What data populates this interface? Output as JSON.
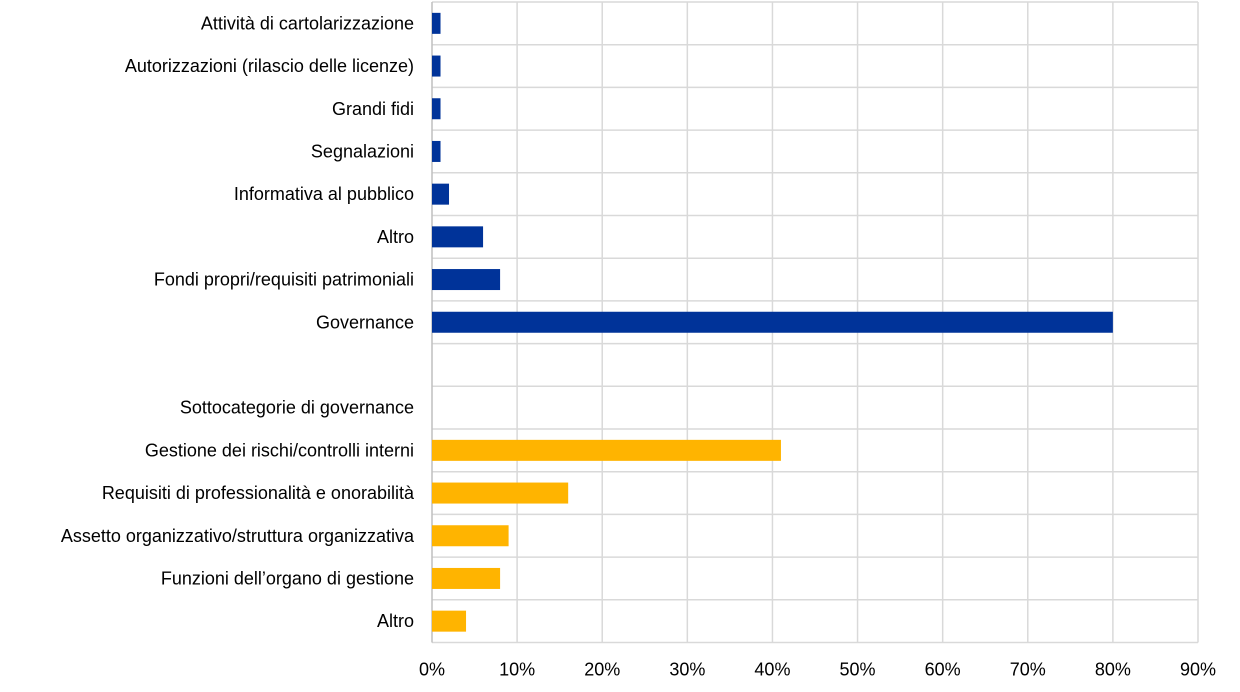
{
  "chart_data": {
    "type": "bar",
    "orientation": "horizontal",
    "title": "",
    "xlabel": "",
    "ylabel": "",
    "xlim": [
      0,
      90
    ],
    "x_tick_step": 10,
    "tick_suffix": "%",
    "grid": true,
    "legend": "none",
    "colors": {
      "main": "#003399",
      "governance_sub": "#ffb400"
    },
    "categories": [
      "Attività di cartolarizzazione",
      "Autorizzazioni (rilascio delle licenze)",
      "Grandi fidi",
      "Segnalazioni",
      "Informativa al pubblico",
      "Altro",
      "Fondi propri/requisiti patrimoniali",
      "Governance",
      "",
      "Sottocategorie di governance",
      "Gestione dei rischi/controlli interni",
      "Requisiti di professionalità e onorabilità",
      "Assetto organizzativo/struttura organizzativa",
      "Funzioni dell’organo di gestione",
      "Altro"
    ],
    "values": [
      1,
      1,
      1,
      1,
      2,
      6,
      8,
      80,
      null,
      null,
      41,
      16,
      9,
      8,
      4
    ],
    "groups": [
      "main",
      "main",
      "main",
      "main",
      "main",
      "main",
      "main",
      "main",
      null,
      null,
      "governance_sub",
      "governance_sub",
      "governance_sub",
      "governance_sub",
      "governance_sub"
    ]
  }
}
